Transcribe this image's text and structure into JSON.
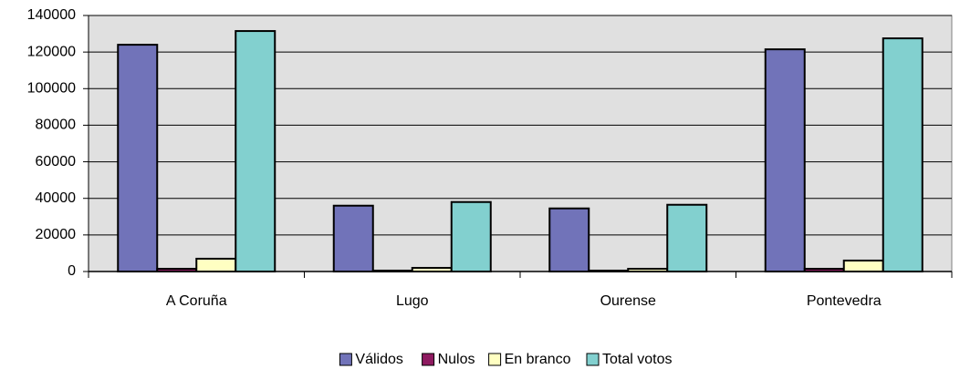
{
  "chart_data": {
    "type": "bar",
    "categories": [
      "A Coruña",
      "Lugo",
      "Ourense",
      "Pontevedra"
    ],
    "series": [
      {
        "name": "Válidos",
        "color": "#7173b9",
        "values": [
          124000,
          36000,
          34500,
          121500
        ]
      },
      {
        "name": "Nulos",
        "color": "#8e1a60",
        "values": [
          1500,
          500,
          500,
          1500
        ]
      },
      {
        "name": "En branco",
        "color": "#ffffc2",
        "values": [
          7000,
          2000,
          1500,
          6000
        ]
      },
      {
        "name": "Total votos",
        "color": "#82d0cf",
        "values": [
          131500,
          38000,
          36500,
          127500
        ]
      }
    ],
    "ylim": [
      0,
      140000
    ],
    "yticks": [
      0,
      20000,
      40000,
      60000,
      80000,
      100000,
      120000,
      140000
    ],
    "grid": true,
    "legend": "bottom"
  }
}
